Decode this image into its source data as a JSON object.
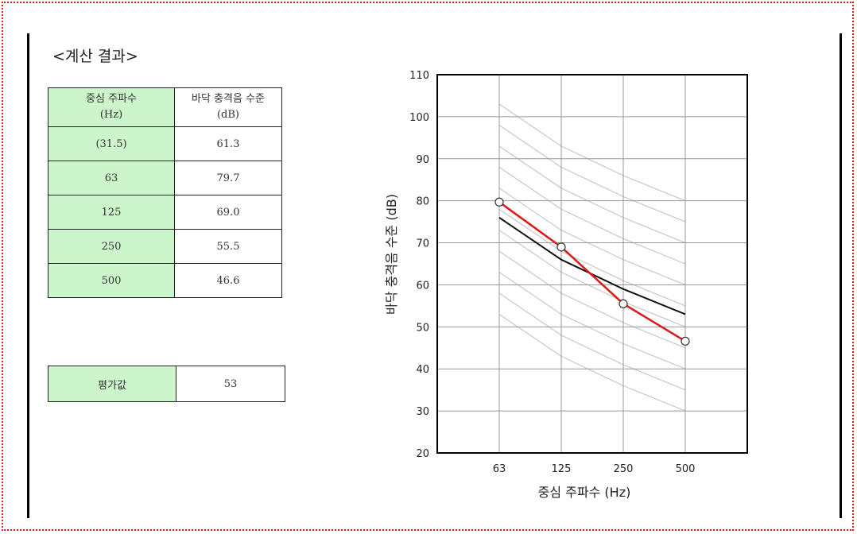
{
  "page": {
    "title": "<계산 결과>"
  },
  "table": {
    "header": {
      "col1_line1": "중심 주파수",
      "col1_line2": "(Hz)",
      "col2_line1": "바닥 충격음 수준",
      "col2_line2": "(dB)"
    },
    "rows": [
      {
        "freq": "(31.5)",
        "level": "61.3"
      },
      {
        "freq": "63",
        "level": "79.7"
      },
      {
        "freq": "125",
        "level": "69.0"
      },
      {
        "freq": "250",
        "level": "55.5"
      },
      {
        "freq": "500",
        "level": "46.6"
      }
    ]
  },
  "score": {
    "label": "평가값",
    "value": "53"
  },
  "chart_data": {
    "type": "line",
    "xlabel": "중심 주파수 (Hz)",
    "ylabel": "바닥 충격음 수준 (dB)",
    "categories": [
      "63",
      "125",
      "250",
      "500"
    ],
    "ylim": [
      20,
      110
    ],
    "yticks": [
      20,
      30,
      40,
      50,
      60,
      70,
      80,
      90,
      100,
      110
    ],
    "grid": true,
    "series": [
      {
        "role": "measured",
        "color": "#dd1c1c",
        "markers": true,
        "values": [
          79.7,
          69.0,
          55.5,
          46.6
        ]
      },
      {
        "role": "rating-curve",
        "color": "#111111",
        "markers": false,
        "values": [
          76,
          66,
          59,
          53
        ]
      }
    ],
    "reference_curves": [
      [
        103,
        93,
        86,
        80
      ],
      [
        98,
        88,
        81,
        75
      ],
      [
        93,
        83,
        76,
        70
      ],
      [
        88,
        78,
        71,
        65
      ],
      [
        83,
        73,
        66,
        60
      ],
      [
        78,
        68,
        61,
        55
      ],
      [
        73,
        63,
        56,
        50
      ],
      [
        68,
        58,
        51,
        45
      ],
      [
        63,
        53,
        46,
        40
      ],
      [
        58,
        48,
        41,
        35
      ],
      [
        53,
        43,
        36,
        30
      ]
    ],
    "colors": {
      "grid": "#999999",
      "reference": "#c8c8c8",
      "axis": "#000000"
    }
  }
}
